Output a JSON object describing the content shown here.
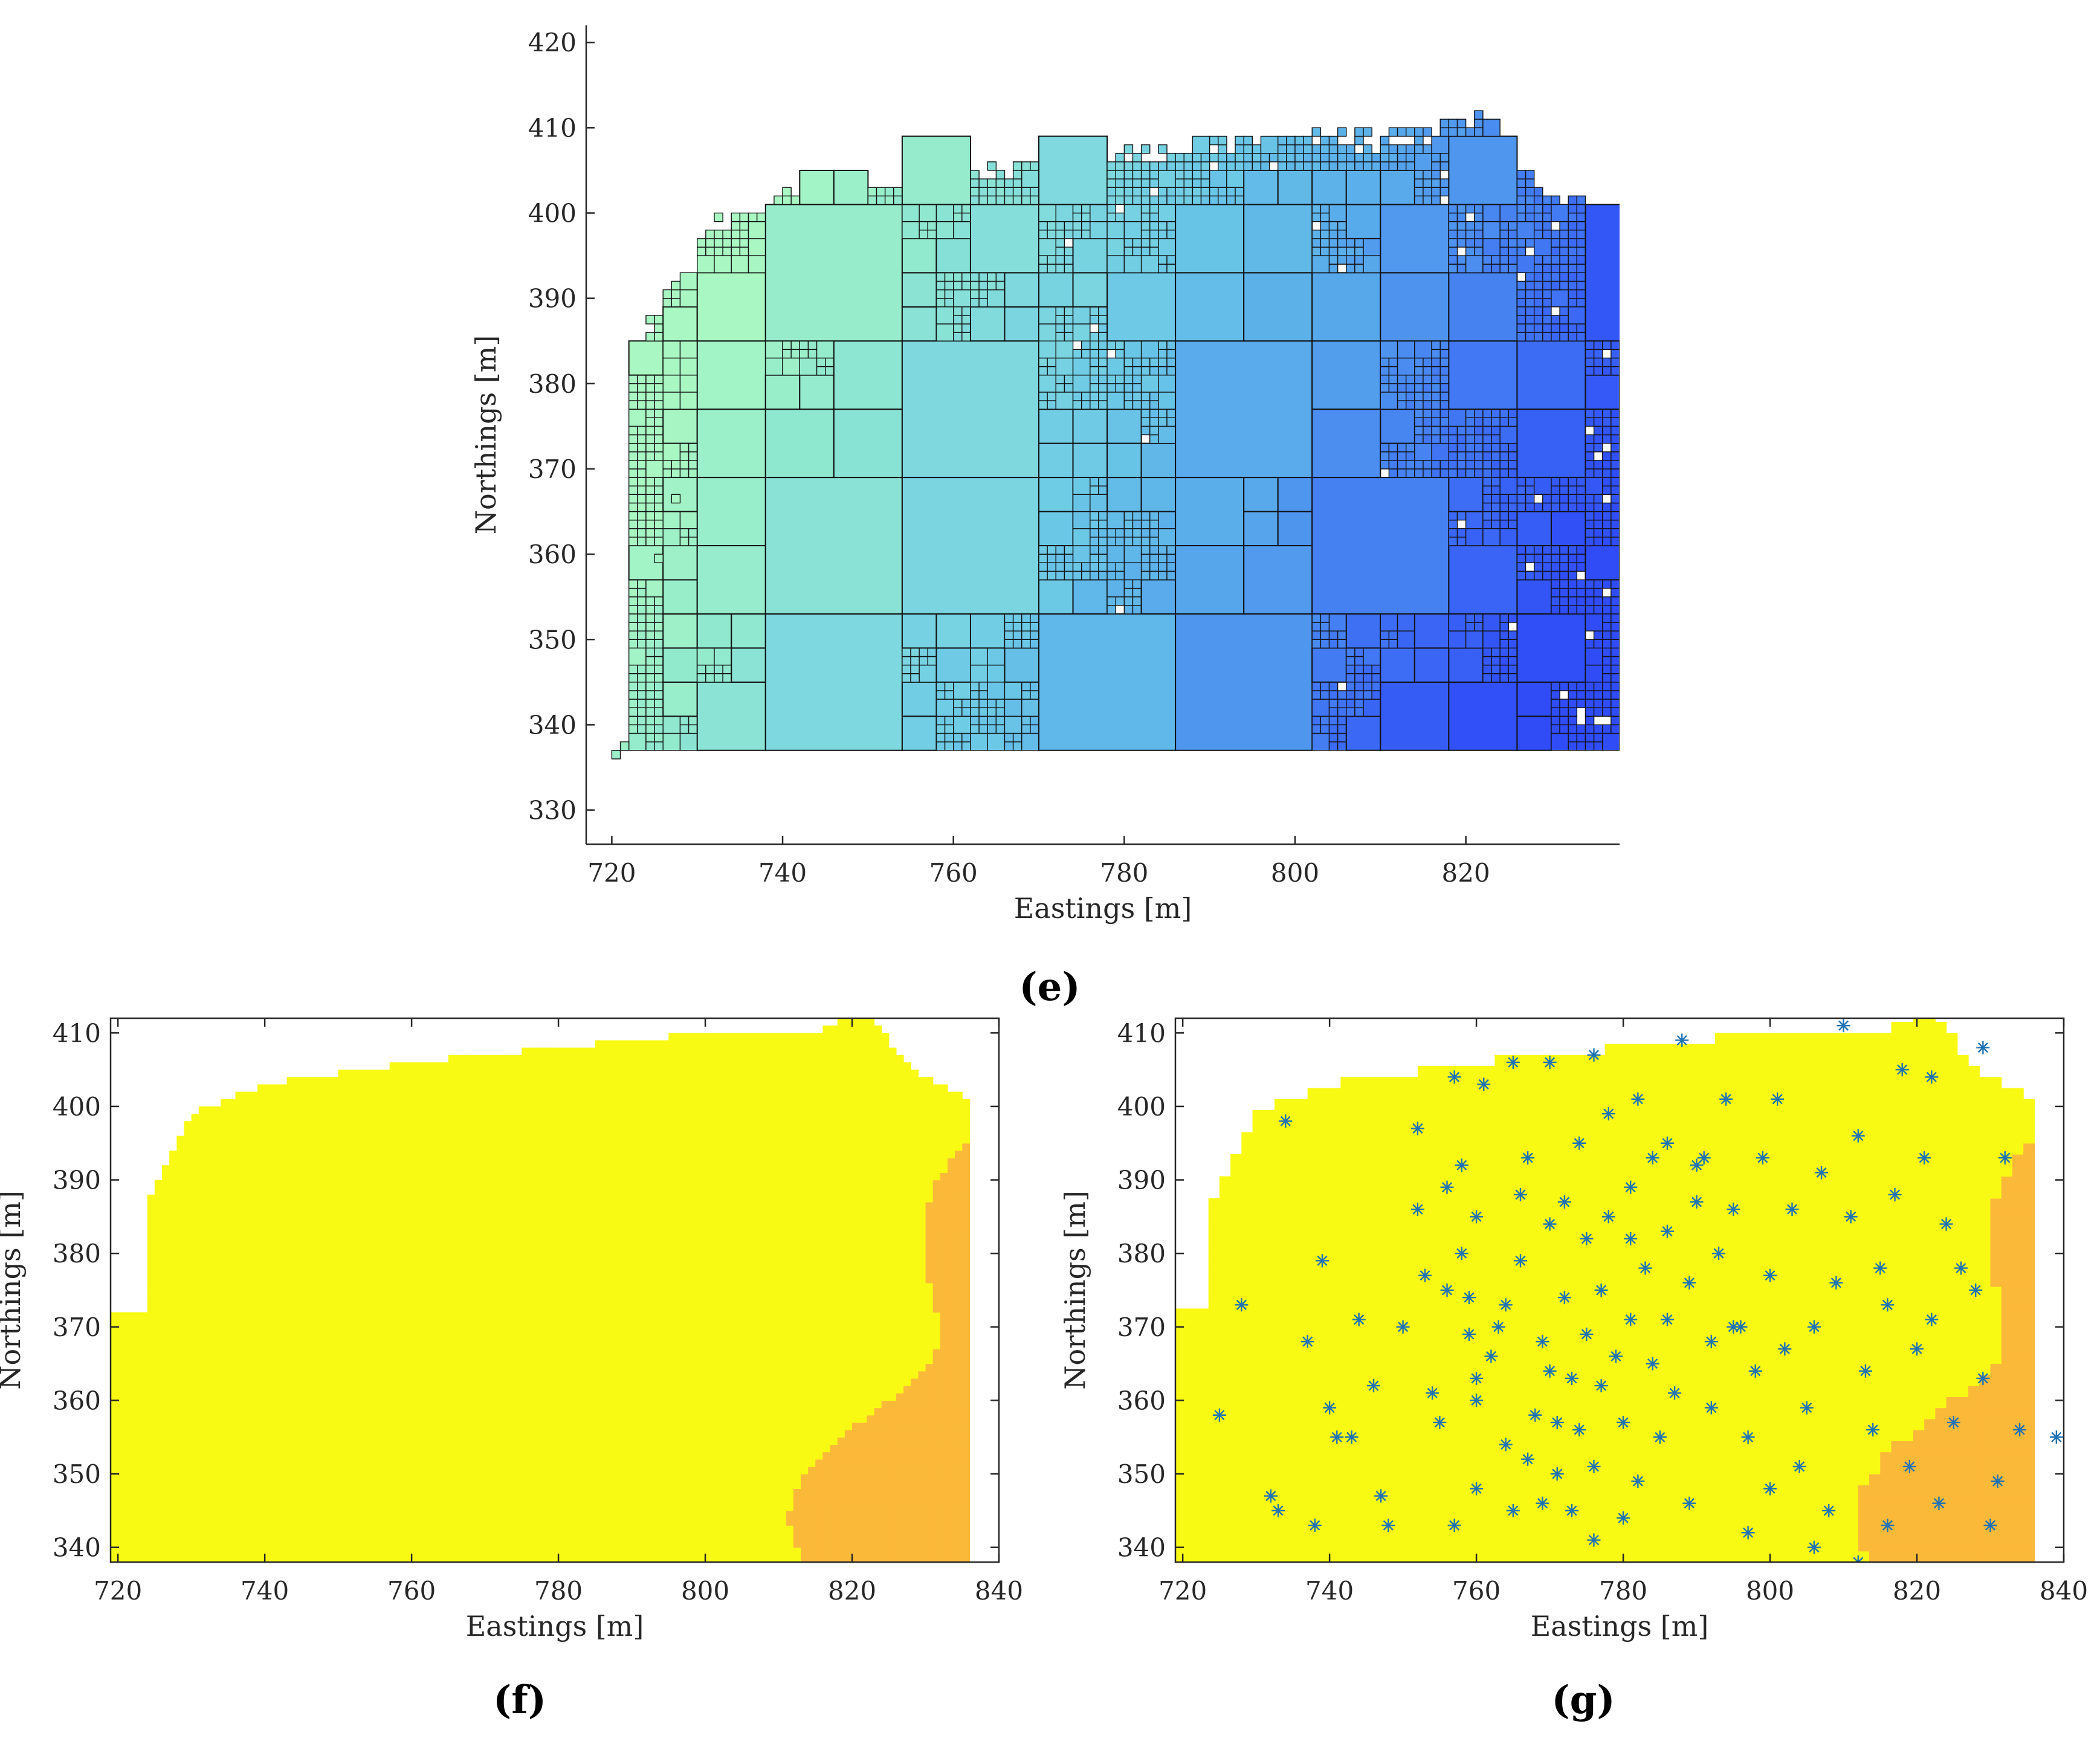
{
  "chart_data": [
    {
      "type": "heatmap",
      "panel_label": "(e)",
      "xlabel": "Eastings [m]",
      "ylabel": "Northings [m]",
      "xlim": [
        717,
        838
      ],
      "ylim": [
        326,
        422
      ],
      "xticks": [
        720,
        740,
        760,
        780,
        800,
        820
      ],
      "yticks": [
        330,
        340,
        350,
        360,
        370,
        380,
        390,
        400,
        410,
        420
      ],
      "extent": {
        "x": [
          722,
          836
        ],
        "y_top_by_x": [
          [
            722,
            381
          ],
          [
            730,
            397
          ],
          [
            740,
            401
          ],
          [
            760,
            404
          ],
          [
            780,
            406
          ],
          [
            800,
            408
          ],
          [
            815,
            408
          ],
          [
            822,
            411
          ],
          [
            828,
            403
          ],
          [
            836,
            399
          ]
        ],
        "y_bottom": 337
      },
      "colormap": [
        "#a9f7c2",
        "#8fe8cf",
        "#7fd9de",
        "#6cc9e6",
        "#5aaeea",
        "#4a8cf0",
        "#3a66f5",
        "#2f4cf7"
      ],
      "color_gradient": "green (west) to blue (east)",
      "grid": "quadtree cells with black outlines",
      "grid_on": false
    },
    {
      "type": "heatmap",
      "panel_label": "(f)",
      "xlabel": "Eastings [m]",
      "ylabel": "Northings [m]",
      "xlim": [
        719,
        840
      ],
      "ylim": [
        338,
        412
      ],
      "xticks": [
        720,
        740,
        760,
        780,
        800,
        820,
        840
      ],
      "yticks": [
        340,
        350,
        360,
        370,
        380,
        390,
        400,
        410
      ],
      "contour_classes": [
        "#f9fa14",
        "#fbb93a",
        "#acc334",
        "#3ac58e",
        "#10aed4",
        "#2f87f0",
        "#4a52ef",
        "#3a2fa6"
      ],
      "contours": "filled bands with black boundaries",
      "grid_on": false
    },
    {
      "type": "heatmap",
      "panel_label": "(g)",
      "xlabel": "Eastings [m]",
      "ylabel": "Northings [m]",
      "xlim": [
        719,
        840
      ],
      "ylim": [
        338,
        412
      ],
      "xticks": [
        720,
        740,
        760,
        780,
        800,
        820,
        840
      ],
      "yticks": [
        340,
        350,
        360,
        370,
        380,
        390,
        400,
        410
      ],
      "contour_classes": [
        "#f9fa14",
        "#fbb93a",
        "#acc334",
        "#3ac58e",
        "#10aed4",
        "#2f87f0",
        "#4a52ef",
        "#3a2fa6"
      ],
      "marker": "asterisk",
      "marker_color": "#1f72b4",
      "sample_points": [
        [
          725,
          358
        ],
        [
          728,
          373
        ],
        [
          733,
          345
        ],
        [
          734,
          398
        ],
        [
          737,
          368
        ],
        [
          739,
          379
        ],
        [
          740,
          359
        ],
        [
          741,
          355
        ],
        [
          744,
          371
        ],
        [
          747,
          347
        ],
        [
          748,
          343
        ],
        [
          750,
          370
        ],
        [
          752,
          397
        ],
        [
          752,
          386
        ],
        [
          753,
          377
        ],
        [
          754,
          361
        ],
        [
          755,
          357
        ],
        [
          756,
          389
        ],
        [
          756,
          375
        ],
        [
          757,
          343
        ],
        [
          757,
          404
        ],
        [
          758,
          392
        ],
        [
          758,
          380
        ],
        [
          759,
          374
        ],
        [
          759,
          369
        ],
        [
          760,
          360
        ],
        [
          760,
          348
        ],
        [
          760,
          385
        ],
        [
          761,
          403
        ],
        [
          762,
          366
        ],
        [
          763,
          370
        ],
        [
          764,
          354
        ],
        [
          764,
          373
        ],
        [
          765,
          345
        ],
        [
          766,
          379
        ],
        [
          766,
          388
        ],
        [
          767,
          352
        ],
        [
          767,
          393
        ],
        [
          768,
          358
        ],
        [
          769,
          346
        ],
        [
          769,
          368
        ],
        [
          770,
          384
        ],
        [
          770,
          364
        ],
        [
          771,
          357
        ],
        [
          771,
          350
        ],
        [
          772,
          374
        ],
        [
          772,
          387
        ],
        [
          773,
          345
        ],
        [
          773,
          363
        ],
        [
          774,
          395
        ],
        [
          774,
          356
        ],
        [
          775,
          382
        ],
        [
          775,
          369
        ],
        [
          776,
          341
        ],
        [
          776,
          351
        ],
        [
          777,
          375
        ],
        [
          777,
          362
        ],
        [
          778,
          385
        ],
        [
          778,
          399
        ],
        [
          779,
          366
        ],
        [
          780,
          344
        ],
        [
          780,
          357
        ],
        [
          781,
          371
        ],
        [
          781,
          389
        ],
        [
          782,
          401
        ],
        [
          782,
          349
        ],
        [
          783,
          378
        ],
        [
          784,
          365
        ],
        [
          784,
          393
        ],
        [
          785,
          355
        ],
        [
          786,
          383
        ],
        [
          786,
          371
        ],
        [
          787,
          361
        ],
        [
          788,
          409
        ],
        [
          789,
          346
        ],
        [
          789,
          376
        ],
        [
          790,
          387
        ],
        [
          791,
          393
        ],
        [
          792,
          359
        ],
        [
          792,
          368
        ],
        [
          793,
          380
        ],
        [
          794,
          401
        ],
        [
          795,
          386
        ],
        [
          796,
          370
        ],
        [
          797,
          355
        ],
        [
          797,
          342
        ],
        [
          798,
          364
        ],
        [
          799,
          393
        ],
        [
          800,
          377
        ],
        [
          801,
          401
        ],
        [
          802,
          367
        ],
        [
          803,
          386
        ],
        [
          804,
          351
        ],
        [
          805,
          359
        ],
        [
          806,
          370
        ],
        [
          807,
          391
        ],
        [
          808,
          345
        ],
        [
          809,
          376
        ],
        [
          810,
          411
        ],
        [
          811,
          385
        ],
        [
          812,
          396
        ],
        [
          813,
          364
        ],
        [
          814,
          356
        ],
        [
          815,
          378
        ],
        [
          816,
          343
        ],
        [
          817,
          388
        ],
        [
          818,
          405
        ],
        [
          819,
          351
        ],
        [
          820,
          367
        ],
        [
          821,
          393
        ],
        [
          822,
          371
        ],
        [
          823,
          346
        ],
        [
          824,
          384
        ],
        [
          825,
          357
        ],
        [
          826,
          378
        ],
        [
          828,
          375
        ],
        [
          829,
          363
        ],
        [
          830,
          343
        ],
        [
          831,
          349
        ],
        [
          832,
          393
        ],
        [
          834,
          356
        ],
        [
          839,
          355
        ],
        [
          822,
          404
        ],
        [
          829,
          408
        ],
        [
          816,
          373
        ],
        [
          812,
          338
        ],
        [
          806,
          340
        ],
        [
          800,
          348
        ],
        [
          795,
          370
        ],
        [
          790,
          392
        ],
        [
          786,
          395
        ],
        [
          781,
          382
        ],
        [
          776,
          407
        ],
        [
          770,
          406
        ],
        [
          765,
          406
        ],
        [
          760,
          363
        ],
        [
          746,
          362
        ],
        [
          743,
          355
        ],
        [
          738,
          343
        ],
        [
          732,
          347
        ]
      ],
      "grid_on": false
    }
  ]
}
